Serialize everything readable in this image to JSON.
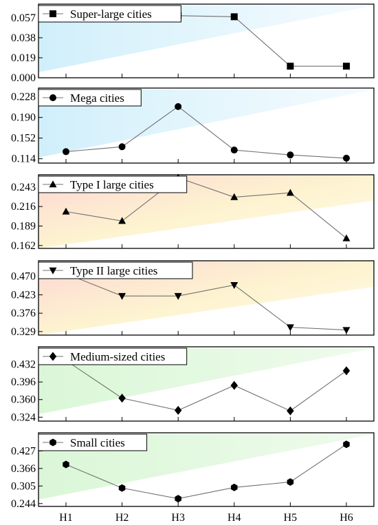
{
  "chart_data": [
    {
      "type": "line",
      "name": "Super-large cities",
      "marker": "square",
      "categories": [
        "H1",
        "H2",
        "H3",
        "H4",
        "H5",
        "H6"
      ],
      "values": [
        0.058,
        0.065,
        0.059,
        0.058,
        0.011,
        0.011
      ],
      "yticks": [
        "0.000",
        "0.019",
        "0.038",
        "0.057"
      ],
      "ylim": [
        0.0,
        0.07
      ],
      "tint": "blue"
    },
    {
      "type": "line",
      "name": "Mega cities",
      "marker": "circle",
      "categories": [
        "H1",
        "H2",
        "H3",
        "H4",
        "H5",
        "H6"
      ],
      "values": [
        0.127,
        0.136,
        0.21,
        0.13,
        0.121,
        0.115
      ],
      "yticks": [
        "0.114",
        "0.152",
        "0.190",
        "0.228"
      ],
      "ylim": [
        0.106,
        0.244
      ],
      "tint": "blue"
    },
    {
      "type": "line",
      "name": "Type I large cities",
      "marker": "triangle-up",
      "categories": [
        "H1",
        "H2",
        "H3",
        "H4",
        "H5",
        "H6"
      ],
      "values": [
        0.209,
        0.196,
        0.256,
        0.229,
        0.235,
        0.172
      ],
      "yticks": [
        "0.162",
        "0.189",
        "0.216",
        "0.243"
      ],
      "ylim": [
        0.158,
        0.26
      ],
      "tint": "warm"
    },
    {
      "type": "line",
      "name": "Type II large cities",
      "marker": "triangle-down",
      "categories": [
        "H1",
        "H2",
        "H3",
        "H4",
        "H5",
        "H6"
      ],
      "values": [
        0.477,
        0.42,
        0.42,
        0.448,
        0.34,
        0.333
      ],
      "yticks": [
        "0.329",
        "0.376",
        "0.423",
        "0.470"
      ],
      "ylim": [
        0.32,
        0.51
      ],
      "tint": "warm"
    },
    {
      "type": "line",
      "name": "Medium-sized cities",
      "marker": "diamond",
      "categories": [
        "H1",
        "H2",
        "H3",
        "H4",
        "H5",
        "H6"
      ],
      "values": [
        0.44,
        0.363,
        0.338,
        0.389,
        0.337,
        0.419
      ],
      "yticks": [
        "0.324",
        "0.360",
        "0.396",
        "0.432"
      ],
      "ylim": [
        0.316,
        0.468
      ],
      "tint": "green"
    },
    {
      "type": "line",
      "name": "Small cities",
      "marker": "hexagon",
      "categories": [
        "H1",
        "H2",
        "H3",
        "H4",
        "H5",
        "H6"
      ],
      "values": [
        0.38,
        0.298,
        0.261,
        0.3,
        0.319,
        0.45
      ],
      "yticks": [
        "0.244",
        "0.305",
        "0.366",
        "0.427"
      ],
      "ylim": [
        0.234,
        0.49
      ],
      "tint": "green"
    }
  ],
  "x_tick_labels": [
    "H1",
    "H2",
    "H3",
    "H4",
    "H5",
    "H6"
  ],
  "colors": {
    "line": "#707070",
    "marker": "#000000",
    "frame": "#000000",
    "tint_blue": "#c8ecfa",
    "tint_warm_top": "#fcd0cc",
    "tint_warm_bottom": "#fdf3c4",
    "tint_green": "#d4f5d0"
  }
}
